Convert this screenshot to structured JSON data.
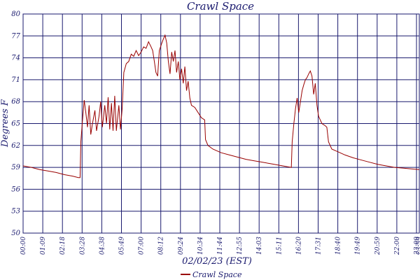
{
  "chart_data": {
    "type": "line",
    "title": "Crawl Space",
    "xlabel": "02/02/23 (EST)",
    "ylabel": "Degrees F",
    "ylim": [
      50,
      80
    ],
    "yticks": [
      "50",
      "53",
      "56",
      "59",
      "62",
      "65",
      "68",
      "71",
      "74",
      "77",
      "80"
    ],
    "xticks": [
      "00:00",
      "01:09",
      "02:18",
      "03:28",
      "04:38",
      "05:49",
      "07:00",
      "08:12",
      "09:24",
      "10:34",
      "11:44",
      "12:55",
      "14:03",
      "15:11",
      "16:20",
      "17:31",
      "18:40",
      "19:49",
      "20:59",
      "22:00",
      "23:09",
      "23:59"
    ],
    "grid": true,
    "legend_position": "bottom-center",
    "series": [
      {
        "name": "Crawl Space",
        "color": "#990000",
        "points": [
          [
            0,
            59.2
          ],
          [
            0.5,
            59.0
          ],
          [
            1,
            58.7
          ],
          [
            1.5,
            58.5
          ],
          [
            2,
            58.3
          ],
          [
            2.5,
            58.0
          ],
          [
            3,
            57.8
          ],
          [
            3.35,
            57.6
          ],
          [
            3.45,
            57.6
          ],
          [
            3.5,
            62.5
          ],
          [
            3.6,
            65.5
          ],
          [
            3.7,
            68.2
          ],
          [
            3.8,
            66.5
          ],
          [
            3.9,
            64.5
          ],
          [
            4.0,
            67.5
          ],
          [
            4.1,
            63.5
          ],
          [
            4.2,
            65.0
          ],
          [
            4.35,
            66.8
          ],
          [
            4.45,
            64.0
          ],
          [
            4.6,
            66.0
          ],
          [
            4.7,
            68.0
          ],
          [
            4.8,
            64.5
          ],
          [
            4.95,
            67.5
          ],
          [
            5.05,
            65.0
          ],
          [
            5.15,
            68.6
          ],
          [
            5.25,
            64.2
          ],
          [
            5.35,
            67.8
          ],
          [
            5.45,
            64.0
          ],
          [
            5.55,
            68.8
          ],
          [
            5.65,
            64.0
          ],
          [
            5.8,
            67.5
          ],
          [
            5.9,
            64.2
          ],
          [
            6.0,
            67.0
          ],
          [
            6.1,
            72.0
          ],
          [
            6.25,
            73.2
          ],
          [
            6.4,
            73.5
          ],
          [
            6.55,
            74.5
          ],
          [
            6.7,
            74.2
          ],
          [
            6.85,
            75.0
          ],
          [
            7.0,
            74.3
          ],
          [
            7.15,
            74.8
          ],
          [
            7.3,
            75.5
          ],
          [
            7.45,
            75.3
          ],
          [
            7.6,
            76.2
          ],
          [
            7.75,
            75.5
          ],
          [
            7.85,
            75.0
          ],
          [
            7.95,
            73.5
          ],
          [
            8.05,
            72.0
          ],
          [
            8.15,
            71.5
          ],
          [
            8.25,
            75.0
          ],
          [
            8.4,
            76.0
          ],
          [
            8.5,
            76.6
          ],
          [
            8.6,
            77.1
          ],
          [
            8.7,
            76.0
          ],
          [
            8.8,
            73.5
          ],
          [
            8.9,
            71.8
          ],
          [
            9.0,
            74.8
          ],
          [
            9.1,
            73.5
          ],
          [
            9.2,
            75.0
          ],
          [
            9.3,
            72.0
          ],
          [
            9.4,
            73.5
          ],
          [
            9.5,
            71.0
          ],
          [
            9.6,
            72.5
          ],
          [
            9.7,
            70.5
          ],
          [
            9.8,
            72.8
          ],
          [
            9.9,
            69.5
          ],
          [
            10.0,
            70.8
          ],
          [
            10.1,
            68.5
          ],
          [
            10.2,
            67.5
          ],
          [
            10.4,
            67.2
          ],
          [
            10.6,
            66.5
          ],
          [
            10.8,
            65.8
          ],
          [
            11.0,
            65.5
          ],
          [
            11.05,
            62.8
          ],
          [
            11.2,
            62.0
          ],
          [
            11.5,
            61.5
          ],
          [
            12.0,
            61.0
          ],
          [
            12.5,
            60.7
          ],
          [
            13.0,
            60.4
          ],
          [
            13.5,
            60.1
          ],
          [
            14.0,
            59.9
          ],
          [
            14.5,
            59.7
          ],
          [
            15.0,
            59.5
          ],
          [
            15.5,
            59.3
          ],
          [
            16.0,
            59.1
          ],
          [
            16.25,
            59.0
          ],
          [
            16.3,
            62.5
          ],
          [
            16.4,
            65.0
          ],
          [
            16.5,
            67.0
          ],
          [
            16.6,
            68.5
          ],
          [
            16.7,
            66.5
          ],
          [
            16.8,
            68.0
          ],
          [
            16.9,
            69.5
          ],
          [
            17.0,
            70.3
          ],
          [
            17.1,
            71.0
          ],
          [
            17.2,
            71.3
          ],
          [
            17.3,
            71.8
          ],
          [
            17.4,
            72.2
          ],
          [
            17.5,
            71.5
          ],
          [
            17.6,
            69.0
          ],
          [
            17.7,
            70.5
          ],
          [
            17.8,
            67.5
          ],
          [
            17.9,
            66.0
          ],
          [
            18.0,
            65.5
          ],
          [
            18.1,
            65.0
          ],
          [
            18.3,
            64.7
          ],
          [
            18.4,
            64.5
          ],
          [
            18.5,
            62.5
          ],
          [
            18.7,
            61.5
          ],
          [
            19.0,
            61.2
          ],
          [
            19.5,
            60.7
          ],
          [
            20.0,
            60.3
          ],
          [
            20.5,
            60.0
          ],
          [
            21.0,
            59.7
          ],
          [
            21.5,
            59.4
          ],
          [
            22.0,
            59.2
          ],
          [
            22.5,
            59.0
          ],
          [
            23.0,
            58.9
          ],
          [
            23.5,
            58.8
          ],
          [
            24.0,
            58.7
          ]
        ]
      }
    ]
  }
}
